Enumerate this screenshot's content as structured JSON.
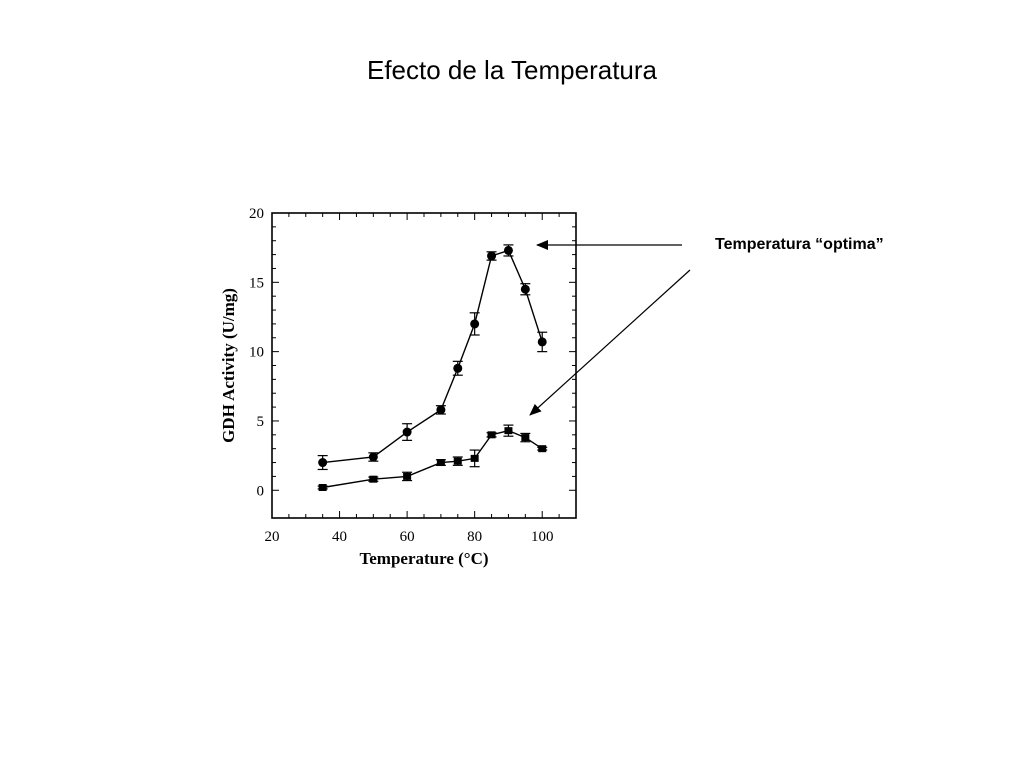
{
  "slide": {
    "title": "Efecto de la Temperatura",
    "annotation": "Temperatura “optima”"
  },
  "chart_data": {
    "type": "scatter",
    "title": "",
    "xlabel": "Temperature (°C)",
    "ylabel": "GDH Activity (U/mg)",
    "xlim": [
      20,
      110
    ],
    "ylim": [
      -2,
      20
    ],
    "xticks": [
      20,
      40,
      60,
      80,
      100
    ],
    "yticks": [
      0,
      5,
      10,
      15,
      20
    ],
    "grid": false,
    "lines": true,
    "error_bars": true,
    "series": [
      {
        "marker": "circle",
        "x": [
          35,
          50,
          60,
          70,
          75,
          80,
          85,
          90,
          95,
          100
        ],
        "y": [
          2.0,
          2.4,
          4.2,
          5.8,
          8.8,
          12.0,
          16.9,
          17.3,
          14.5,
          10.7
        ],
        "err": [
          0.5,
          0.3,
          0.6,
          0.3,
          0.5,
          0.8,
          0.3,
          0.4,
          0.4,
          0.7
        ]
      },
      {
        "marker": "square",
        "x": [
          35,
          50,
          60,
          70,
          75,
          80,
          85,
          90,
          95,
          100
        ],
        "y": [
          0.2,
          0.8,
          1.0,
          2.0,
          2.1,
          2.3,
          4.0,
          4.3,
          3.8,
          3.0
        ],
        "err": [
          0.1,
          0.15,
          0.3,
          0.2,
          0.3,
          0.6,
          0.15,
          0.4,
          0.3,
          0.1
        ]
      }
    ]
  }
}
